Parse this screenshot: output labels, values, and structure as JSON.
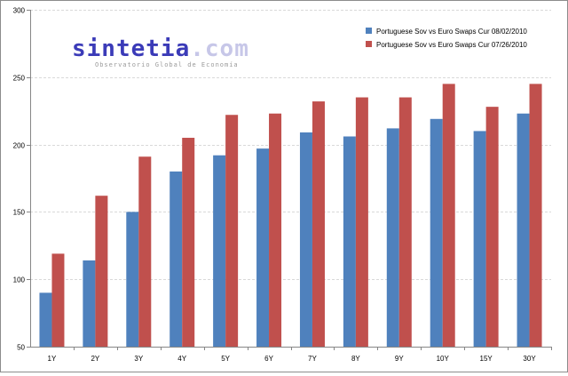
{
  "logo": {
    "name": "sintetia",
    "tld": ".com",
    "tagline": "Observatorio Global de Economía"
  },
  "chart_data": {
    "type": "bar",
    "title": "",
    "xlabel": "",
    "ylabel": "",
    "categories": [
      "1Y",
      "2Y",
      "3Y",
      "4Y",
      "5Y",
      "6Y",
      "7Y",
      "8Y",
      "9Y",
      "10Y",
      "15Y",
      "30Y"
    ],
    "series": [
      {
        "name": "Portuguese Sov vs Euro Swaps Cur 08/02/2010",
        "color": "#4f81bd",
        "values": [
          90,
          114,
          150,
          180,
          192,
          197,
          209,
          206,
          212,
          219,
          210,
          223
        ]
      },
      {
        "name": "Portuguese Sov vs Euro Swaps Cur 07/26/2010",
        "color": "#c0504d",
        "values": [
          119,
          162,
          191,
          205,
          222,
          223,
          232,
          235,
          235,
          245,
          228,
          245
        ]
      }
    ],
    "ylim": [
      50,
      300
    ],
    "yticks": [
      50,
      100,
      150,
      200,
      250,
      300
    ],
    "grid": true,
    "legend_position": "top-right"
  }
}
